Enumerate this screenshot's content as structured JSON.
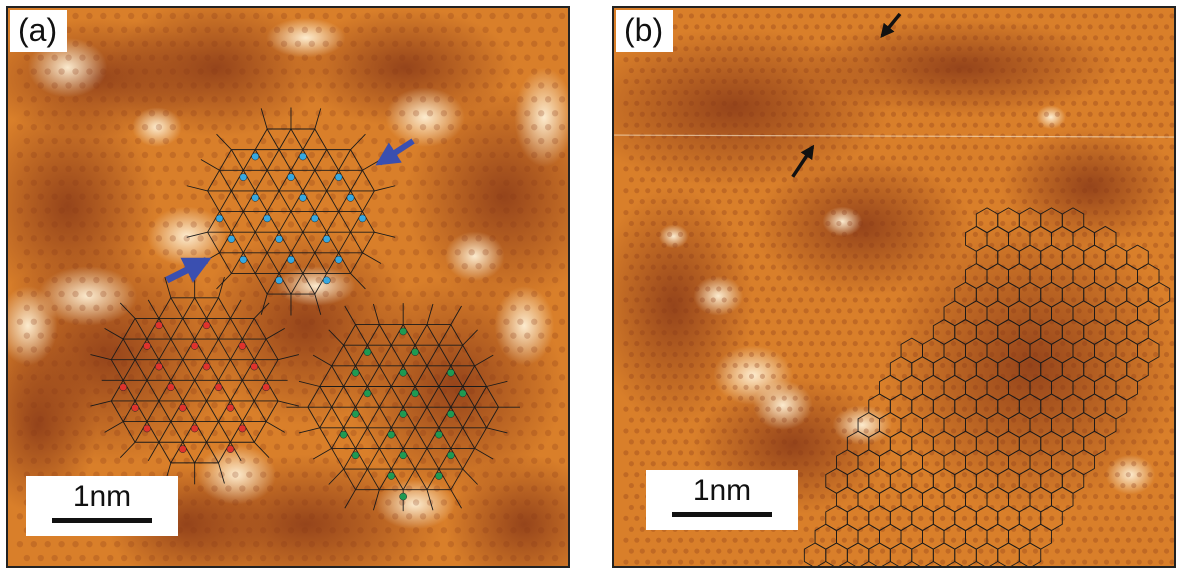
{
  "panels": [
    {
      "label": "(a)",
      "scalebar": "1nm"
    },
    {
      "label": "(b)",
      "scalebar": "1nm"
    }
  ],
  "colors": {
    "background": "#d97f2a",
    "dark": "#8a3a18",
    "bright": "#fff1d6",
    "grid_line": "#1a1a1a",
    "arrow_blue": "#3a4fb0",
    "arrow_black": "#111111",
    "lattice_blue": "#37a8e0",
    "lattice_red": "#e0332c",
    "lattice_green": "#1f9a52"
  }
}
